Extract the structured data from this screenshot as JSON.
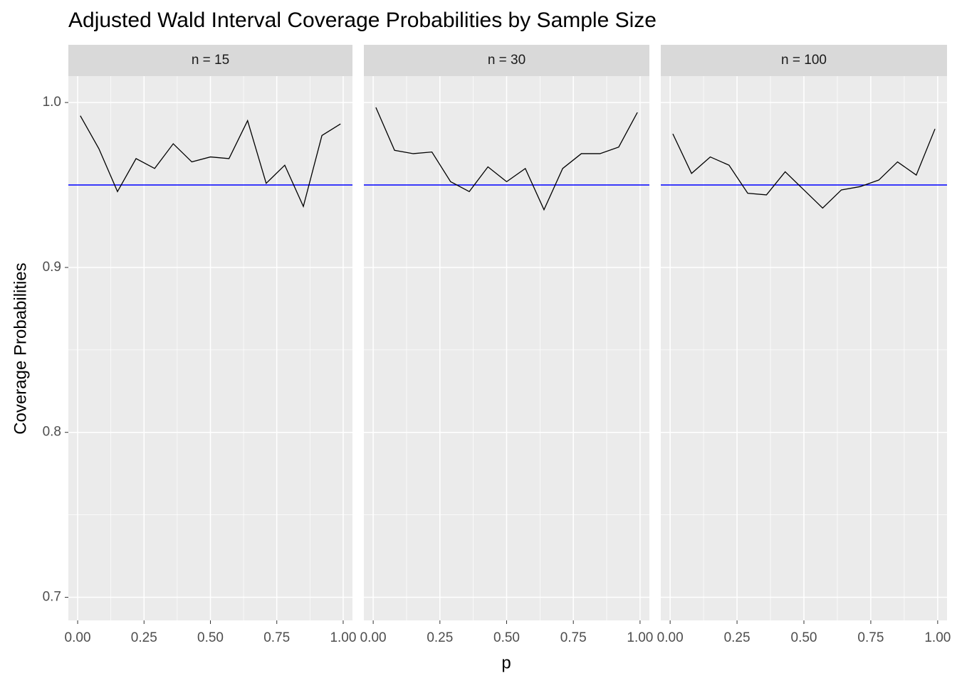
{
  "chart_data": [
    {
      "type": "line",
      "title": "Adjusted Wald Interval Coverage Probabilities by Sample Size",
      "x_label": "p",
      "y_label": "Coverage Probabilities",
      "facet": "n = 15",
      "x": [
        0.01,
        0.08,
        0.15,
        0.22,
        0.29,
        0.36,
        0.43,
        0.5,
        0.57,
        0.64,
        0.71,
        0.78,
        0.85,
        0.92,
        0.99
      ],
      "series": [
        {
          "color": "#000000",
          "values": [
            0.992,
            0.972,
            0.946,
            0.966,
            0.96,
            0.975,
            0.964,
            0.967,
            0.966,
            0.989,
            0.951,
            0.962,
            0.937,
            0.98,
            0.987
          ]
        }
      ],
      "hline": {
        "value": 0.95,
        "color": "#0000ff"
      },
      "xlim": [
        -0.035,
        1.035
      ],
      "ylim": [
        0.686,
        1.016
      ],
      "xticks": [
        {
          "value": 0,
          "label": "0.00"
        },
        {
          "value": 0.25,
          "label": "0.25"
        },
        {
          "value": 0.5,
          "label": "0.50"
        },
        {
          "value": 0.75,
          "label": "0.75"
        },
        {
          "value": 1,
          "label": "1.00"
        }
      ],
      "yticks": [
        0.7,
        0.8,
        0.9,
        {
          "value": 1,
          "label": "1.0"
        }
      ],
      "grid": true
    },
    {
      "type": "line",
      "facet": "n = 30",
      "x": [
        0.01,
        0.08,
        0.15,
        0.22,
        0.29,
        0.36,
        0.43,
        0.5,
        0.57,
        0.64,
        0.71,
        0.78,
        0.85,
        0.92,
        0.99
      ],
      "series": [
        {
          "color": "#000000",
          "values": [
            0.997,
            0.971,
            0.969,
            0.97,
            0.952,
            0.946,
            0.961,
            0.952,
            0.96,
            0.935,
            0.96,
            0.969,
            0.969,
            0.973,
            0.994
          ]
        }
      ],
      "hline": {
        "value": 0.95,
        "color": "#0000ff"
      },
      "xlim": [
        -0.035,
        1.035
      ],
      "ylim": [
        0.686,
        1.016
      ],
      "xticks": [
        {
          "value": 0,
          "label": "0.00"
        },
        {
          "value": 0.25,
          "label": "0.25"
        },
        {
          "value": 0.5,
          "label": "0.50"
        },
        {
          "value": 0.75,
          "label": "0.75"
        },
        {
          "value": 1,
          "label": "1.00"
        }
      ],
      "grid": true
    },
    {
      "type": "line",
      "facet": "n = 100",
      "x": [
        0.01,
        0.08,
        0.15,
        0.22,
        0.29,
        0.36,
        0.43,
        0.5,
        0.57,
        0.64,
        0.71,
        0.78,
        0.85,
        0.92,
        0.99
      ],
      "series": [
        {
          "color": "#000000",
          "values": [
            0.981,
            0.957,
            0.967,
            0.962,
            0.945,
            0.944,
            0.958,
            0.947,
            0.936,
            0.947,
            0.949,
            0.953,
            0.964,
            0.956,
            0.984
          ]
        }
      ],
      "hline": {
        "value": 0.95,
        "color": "#0000ff"
      },
      "xlim": [
        -0.035,
        1.035
      ],
      "ylim": [
        0.686,
        1.016
      ],
      "xticks": [
        {
          "value": 0,
          "label": "0.00"
        },
        {
          "value": 0.25,
          "label": "0.25"
        },
        {
          "value": 0.5,
          "label": "0.50"
        },
        {
          "value": 0.75,
          "label": "0.75"
        },
        {
          "value": 1,
          "label": "1.00"
        }
      ],
      "grid": true
    }
  ]
}
